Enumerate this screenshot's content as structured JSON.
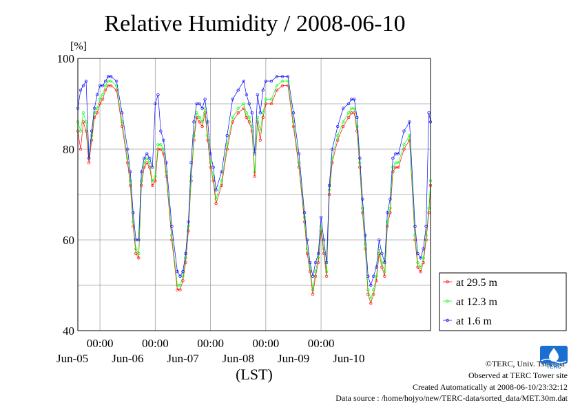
{
  "chart_data": {
    "type": "line",
    "title": "Relative Humidity / 2008-06-10",
    "ylabel": "[%]",
    "xlabel": "(LST)",
    "ylim": [
      40,
      100
    ],
    "yticks": [
      40,
      60,
      80,
      100
    ],
    "x_unit": "days since 2008-06-04 00:00 LST",
    "xlim": [
      0.6,
      6.98
    ],
    "xticks_time": [
      {
        "x": 1.0,
        "label": "00:00"
      },
      {
        "x": 2.0,
        "label": "00:00"
      },
      {
        "x": 3.0,
        "label": "00:00"
      },
      {
        "x": 4.0,
        "label": "00:00"
      },
      {
        "x": 5.0,
        "label": "00:00"
      }
    ],
    "xticks_date": [
      {
        "x": 1.0,
        "label": "Jun-05"
      },
      {
        "x": 2.0,
        "label": "Jun-06"
      },
      {
        "x": 3.0,
        "label": "Jun-07"
      },
      {
        "x": 4.0,
        "label": "Jun-08"
      },
      {
        "x": 5.0,
        "label": "Jun-09"
      },
      {
        "x": 6.0,
        "label": "Jun-10"
      }
    ],
    "grid": true,
    "legend_position": "right-bottom",
    "series": [
      {
        "name": "at 29.5 m",
        "color": "#ff0000",
        "x": [
          0.6,
          0.65,
          0.7,
          0.75,
          0.8,
          0.85,
          0.9,
          0.95,
          1.0,
          1.05,
          1.1,
          1.15,
          1.2,
          1.3,
          1.4,
          1.5,
          1.55,
          1.6,
          1.65,
          1.7,
          1.75,
          1.8,
          1.85,
          1.9,
          1.95,
          2.0,
          2.05,
          2.1,
          2.15,
          2.2,
          2.3,
          2.4,
          2.45,
          2.5,
          2.55,
          2.6,
          2.65,
          2.7,
          2.75,
          2.8,
          2.85,
          2.9,
          2.95,
          3.0,
          3.05,
          3.1,
          3.2,
          3.3,
          3.4,
          3.5,
          3.6,
          3.65,
          3.7,
          3.75,
          3.8,
          3.85,
          3.9,
          3.95,
          4.0,
          4.1,
          4.2,
          4.3,
          4.4,
          4.5,
          4.6,
          4.7,
          4.75,
          4.8,
          4.85,
          4.9,
          4.95,
          5.0,
          5.05,
          5.1,
          5.15,
          5.2,
          5.3,
          5.4,
          5.5,
          5.55,
          5.6,
          5.65,
          5.7,
          5.75,
          5.8,
          5.85,
          5.9,
          5.95,
          6.0,
          6.05,
          6.1,
          6.15,
          6.2,
          6.25,
          6.3,
          6.35,
          6.4,
          6.5,
          6.6,
          6.7,
          6.75,
          6.8,
          6.85,
          6.9,
          6.95,
          6.98
        ],
        "y": [
          84,
          80,
          86,
          84,
          77,
          82,
          87,
          88,
          90,
          91,
          93,
          94,
          94,
          93,
          85,
          77,
          72,
          63,
          57,
          56,
          72,
          76,
          77,
          76,
          72,
          73,
          80,
          80,
          79,
          74,
          60,
          49,
          49,
          51,
          55,
          62,
          73,
          82,
          87,
          86,
          85,
          88,
          82,
          76,
          73,
          68,
          72,
          80,
          86,
          88,
          89,
          87,
          86,
          84,
          74,
          86,
          82,
          87,
          90,
          90,
          93,
          94,
          94,
          85,
          76,
          64,
          57,
          53,
          48,
          52,
          55,
          62,
          57,
          52,
          70,
          77,
          82,
          85,
          87,
          88,
          88,
          84,
          76,
          66,
          58,
          48,
          46,
          48,
          51,
          57,
          54,
          52,
          63,
          66,
          75,
          76,
          76,
          80,
          82,
          60,
          54,
          53,
          55,
          60,
          66,
          72
        ]
      },
      {
        "name": "at 12.3 m",
        "color": "#00ff00",
        "x": [
          0.6,
          0.65,
          0.7,
          0.75,
          0.8,
          0.85,
          0.9,
          0.95,
          1.0,
          1.05,
          1.1,
          1.15,
          1.2,
          1.3,
          1.4,
          1.5,
          1.55,
          1.6,
          1.65,
          1.7,
          1.75,
          1.8,
          1.85,
          1.9,
          1.95,
          2.0,
          2.05,
          2.1,
          2.15,
          2.2,
          2.3,
          2.4,
          2.45,
          2.5,
          2.55,
          2.6,
          2.65,
          2.7,
          2.75,
          2.8,
          2.85,
          2.9,
          2.95,
          3.0,
          3.05,
          3.1,
          3.2,
          3.3,
          3.4,
          3.5,
          3.6,
          3.65,
          3.7,
          3.75,
          3.8,
          3.85,
          3.9,
          3.95,
          4.0,
          4.1,
          4.2,
          4.3,
          4.4,
          4.5,
          4.6,
          4.7,
          4.75,
          4.8,
          4.85,
          4.9,
          4.95,
          5.0,
          5.05,
          5.1,
          5.15,
          5.2,
          5.3,
          5.4,
          5.5,
          5.55,
          5.6,
          5.65,
          5.7,
          5.75,
          5.8,
          5.85,
          5.9,
          5.95,
          6.0,
          6.05,
          6.1,
          6.15,
          6.2,
          6.25,
          6.3,
          6.35,
          6.4,
          6.5,
          6.6,
          6.7,
          6.75,
          6.8,
          6.85,
          6.9,
          6.95,
          6.98
        ],
        "y": [
          86,
          84,
          88,
          86,
          78,
          83,
          88,
          89,
          91,
          92,
          94,
          95,
          95,
          94,
          86,
          78,
          73,
          64,
          58,
          57,
          73,
          77,
          78,
          77,
          73,
          74,
          81,
          81,
          80,
          75,
          61,
          50,
          50,
          52,
          56,
          63,
          74,
          83,
          88,
          87,
          86,
          89,
          83,
          77,
          74,
          69,
          73,
          81,
          87,
          89,
          90,
          88,
          87,
          85,
          75,
          87,
          84,
          88,
          91,
          91,
          94,
          95,
          95,
          86,
          77,
          65,
          58,
          54,
          49,
          53,
          56,
          63,
          58,
          53,
          71,
          78,
          83,
          86,
          88,
          89,
          89,
          85,
          77,
          67,
          59,
          49,
          47,
          49,
          52,
          58,
          55,
          53,
          64,
          67,
          76,
          77,
          77,
          81,
          83,
          61,
          55,
          54,
          56,
          61,
          67,
          73
        ]
      },
      {
        "name": "at 1.6 m",
        "color": "#0000ff",
        "x": [
          0.6,
          0.65,
          0.7,
          0.75,
          0.8,
          0.85,
          0.9,
          0.95,
          1.0,
          1.05,
          1.1,
          1.15,
          1.2,
          1.3,
          1.4,
          1.5,
          1.55,
          1.6,
          1.65,
          1.7,
          1.75,
          1.8,
          1.85,
          1.9,
          1.95,
          2.0,
          2.05,
          2.1,
          2.15,
          2.2,
          2.3,
          2.4,
          2.45,
          2.5,
          2.55,
          2.6,
          2.65,
          2.7,
          2.75,
          2.8,
          2.85,
          2.9,
          2.95,
          3.0,
          3.05,
          3.1,
          3.2,
          3.3,
          3.4,
          3.5,
          3.6,
          3.65,
          3.7,
          3.75,
          3.8,
          3.85,
          3.9,
          3.95,
          4.0,
          4.1,
          4.2,
          4.3,
          4.4,
          4.5,
          4.6,
          4.7,
          4.75,
          4.8,
          4.85,
          4.9,
          4.95,
          5.0,
          5.05,
          5.1,
          5.15,
          5.2,
          5.3,
          5.4,
          5.5,
          5.55,
          5.6,
          5.65,
          5.7,
          5.75,
          5.8,
          5.85,
          5.9,
          5.95,
          6.0,
          6.05,
          6.1,
          6.15,
          6.2,
          6.25,
          6.3,
          6.35,
          6.4,
          6.5,
          6.6,
          6.7,
          6.75,
          6.8,
          6.85,
          6.9,
          6.95,
          6.98
        ],
        "y": [
          89,
          93,
          94,
          95,
          78,
          84,
          89,
          92,
          94,
          94,
          95,
          96,
          96,
          95,
          88,
          80,
          75,
          66,
          60,
          60,
          75,
          78,
          79,
          78,
          76,
          90,
          92,
          84,
          82,
          77,
          63,
          53,
          52,
          53,
          57,
          64,
          77,
          86,
          90,
          90,
          89,
          91,
          86,
          79,
          76,
          71,
          75,
          83,
          91,
          93,
          95,
          92,
          90,
          88,
          79,
          92,
          88,
          93,
          95,
          95,
          96,
          96,
          96,
          88,
          79,
          66,
          60,
          55,
          52,
          55,
          57,
          65,
          60,
          55,
          72,
          80,
          85,
          89,
          90,
          91,
          91,
          87,
          78,
          69,
          61,
          52,
          50,
          52,
          54,
          60,
          57,
          55,
          66,
          69,
          78,
          79,
          79,
          84,
          86,
          63,
          57,
          56,
          58,
          63,
          88,
          86
        ]
      }
    ]
  },
  "credits": {
    "copyright": "©TERC, Univ. Tsukuba",
    "site": "Observed at TERC Tower site",
    "created": "Created Automatically at 2008-06-10/23:32:12",
    "source": "Data source : /home/hojyo/new/TERC-data/sorted_data/MET.30m.dat"
  },
  "logo": {
    "name": "terc-logo-icon",
    "text": "TERC",
    "color": "#1a6fd1"
  }
}
